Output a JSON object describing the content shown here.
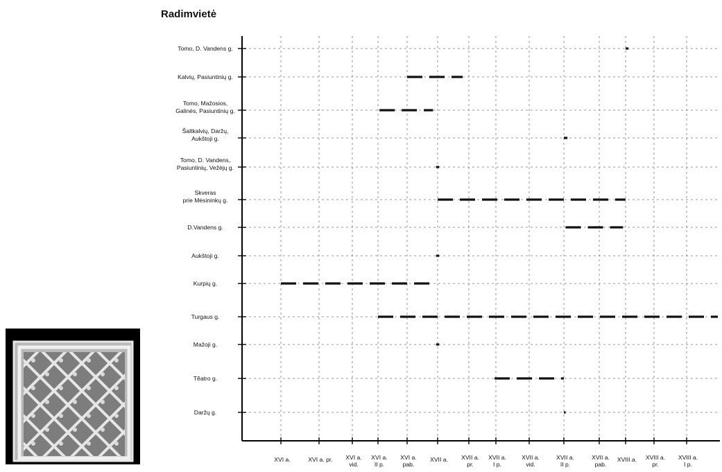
{
  "chart_data": {
    "type": "gantt",
    "title": "Radimvietė",
    "ylabel": "Radimvietė",
    "grid": true,
    "x": [
      [
        "XVI a."
      ],
      [
        "XVI a. pr."
      ],
      [
        "XVI a.",
        "vid."
      ],
      [
        "XVI a.",
        "II p."
      ],
      [
        "XVI a.",
        "pab."
      ],
      [
        "XVII a."
      ],
      [
        "XVII a.",
        "pr."
      ],
      [
        "XVII a.",
        "I p."
      ],
      [
        "XVII a.",
        "vid."
      ],
      [
        "XVII a.",
        "II p."
      ],
      [
        "XVII a.",
        "pab."
      ],
      [
        "XVIII a."
      ],
      [
        "XVIII a.",
        "pr."
      ],
      [
        "XVIII a.",
        "I p."
      ]
    ],
    "series": [
      {
        "name": [
          "Tomo, D. Vandens g."
        ],
        "start": 11.0,
        "end": 11.1
      },
      {
        "name": [
          "Kalvių, Pasiuntinių  g."
        ],
        "start": 4.0,
        "end": 5.8
      },
      {
        "name": [
          "Tomo, Mažosios,",
          "Galinės, Pasiuntinių g."
        ],
        "start": 3.05,
        "end": 4.85
      },
      {
        "name": [
          "Šaltkalvių, Daržų,",
          "Aukštoji g."
        ],
        "start": 9.0,
        "end": 9.1
      },
      {
        "name": [
          "Tomo, D. Vandens,",
          "Pasiuntinių, Vežėjų g."
        ],
        "start": 4.95,
        "end": 5.05
      },
      {
        "name": [
          "Skveras",
          "prie Mėsininkų g."
        ],
        "start": 5.0,
        "end": 11.0
      },
      {
        "name": [
          "D.Vandens g."
        ],
        "start": 9.05,
        "end": 10.9
      },
      {
        "name": [
          "Aukštoji g."
        ],
        "start": 4.95,
        "end": 5.05
      },
      {
        "name": [
          "Kurpių g."
        ],
        "start": 0.0,
        "end": 4.95
      },
      {
        "name": [
          "Turgaus g."
        ],
        "start": 3.0,
        "end": 14.2
      },
      {
        "name": [
          "Mažoji g."
        ],
        "start": 4.95,
        "end": 5.05
      },
      {
        "name": [
          "Tẽatro g."
        ],
        "start": 6.95,
        "end": 9.0
      },
      {
        "name": [
          "Daržų g."
        ],
        "start": 9.0,
        "end": 9.05
      }
    ]
  },
  "photo": {
    "name": "decorative-tile-photo"
  }
}
